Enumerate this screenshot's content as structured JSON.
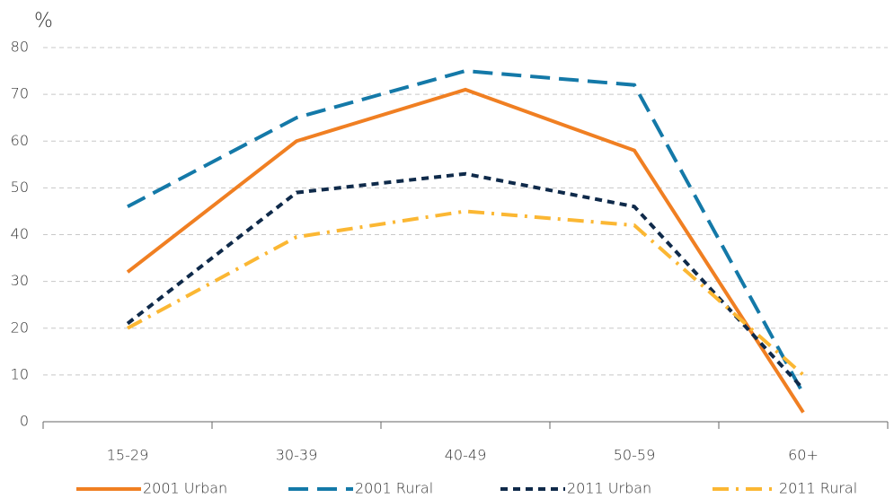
{
  "chart_data": {
    "type": "line",
    "y_unit_label": "%",
    "categories": [
      "15-29",
      "30-39",
      "40-49",
      "50-59",
      "60+"
    ],
    "series": [
      {
        "name": "2001 Urban",
        "color": "#f07f22",
        "dash": "solid",
        "values": [
          32,
          60,
          71,
          58,
          2
        ]
      },
      {
        "name": "2001 Rural",
        "color": "#1479a8",
        "dash": "long-dash",
        "values": [
          46,
          65,
          75,
          72,
          6
        ]
      },
      {
        "name": "2011 Urban",
        "color": "#0f2a4a",
        "dash": "short-dash",
        "values": [
          21,
          49,
          53,
          46,
          7
        ]
      },
      {
        "name": "2011 Rural",
        "color": "#fbb733",
        "dash": "dash-dot",
        "values": [
          20,
          39.5,
          45,
          42,
          10
        ]
      }
    ],
    "ylim": [
      0,
      80
    ],
    "yticks": [
      0,
      10,
      20,
      30,
      40,
      50,
      60,
      70,
      80
    ],
    "grid": true,
    "legend": "bottom"
  }
}
